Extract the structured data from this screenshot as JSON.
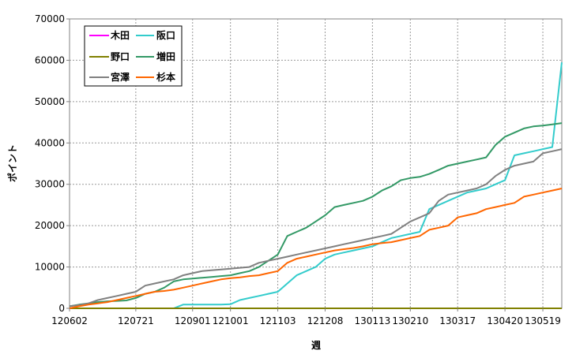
{
  "chart_data": {
    "type": "line",
    "title": "",
    "xlabel": "週",
    "ylabel": "ポイント",
    "ylim": [
      0,
      70000
    ],
    "yticks": [
      0,
      10000,
      20000,
      30000,
      40000,
      50000,
      60000,
      70000
    ],
    "xlim": [
      0,
      52
    ],
    "xticks": [
      {
        "x": 0,
        "label": "120602"
      },
      {
        "x": 7,
        "label": "120721"
      },
      {
        "x": 13,
        "label": "120901"
      },
      {
        "x": 17,
        "label": "121001"
      },
      {
        "x": 22,
        "label": "121103"
      },
      {
        "x": 27,
        "label": "121208"
      },
      {
        "x": 32,
        "label": "130113"
      },
      {
        "x": 36,
        "label": "130210"
      },
      {
        "x": 41,
        "label": "130317"
      },
      {
        "x": 46,
        "label": "130420"
      },
      {
        "x": 50,
        "label": "130519"
      }
    ],
    "grid": true,
    "legend_position": "top-left",
    "series": [
      {
        "name": "木田",
        "color": "#ff00ff",
        "values": [
          0,
          0,
          0,
          0,
          0,
          0,
          0,
          0,
          0,
          0,
          0,
          0,
          0,
          0,
          0,
          0,
          0,
          0,
          0,
          0,
          0,
          0,
          0,
          0,
          0,
          0,
          0,
          0,
          0,
          0,
          0,
          0,
          0,
          0,
          0,
          0,
          0,
          0,
          0,
          0,
          0,
          0,
          0,
          0,
          0,
          0,
          0,
          0,
          0,
          0,
          0,
          0,
          0
        ]
      },
      {
        "name": "阪口",
        "color": "#33cccc",
        "values": [
          0,
          0,
          0,
          0,
          0,
          0,
          0,
          0,
          0,
          0,
          0,
          0,
          900,
          900,
          900,
          900,
          900,
          1000,
          2000,
          2500,
          3000,
          3500,
          4000,
          6000,
          8000,
          9000,
          10000,
          12000,
          13000,
          13500,
          14000,
          14500,
          15000,
          16000,
          17000,
          17500,
          18000,
          18500,
          24000,
          25000,
          26000,
          27000,
          28000,
          28500,
          29000,
          30000,
          31000,
          37000,
          37500,
          38000,
          38500,
          39000,
          59500
        ]
      },
      {
        "name": "野口",
        "color": "#808000",
        "values": [
          0,
          0,
          0,
          0,
          0,
          0,
          0,
          0,
          0,
          0,
          0,
          0,
          0,
          0,
          0,
          0,
          0,
          0,
          0,
          0,
          0,
          0,
          0,
          0,
          0,
          0,
          0,
          0,
          0,
          0,
          0,
          0,
          0,
          0,
          0,
          0,
          0,
          0,
          0,
          0,
          0,
          0,
          0,
          0,
          0,
          0,
          0,
          0,
          0,
          0,
          0,
          0,
          0
        ]
      },
      {
        "name": "増田",
        "color": "#339966",
        "values": [
          500,
          900,
          1200,
          1500,
          1700,
          1800,
          1900,
          2500,
          3500,
          4000,
          5000,
          6500,
          7000,
          7200,
          7400,
          7600,
          7800,
          8000,
          8500,
          9000,
          10000,
          11500,
          13000,
          17500,
          18500,
          19500,
          21000,
          22500,
          24500,
          25000,
          25500,
          26000,
          27000,
          28500,
          29500,
          31000,
          31500,
          31800,
          32500,
          33500,
          34500,
          35000,
          35500,
          36000,
          36500,
          39500,
          41500,
          42500,
          43500,
          44000,
          44200,
          44500,
          44800
        ]
      },
      {
        "name": "宮澤",
        "color": "#808080",
        "values": [
          500,
          800,
          1200,
          2000,
          2500,
          3000,
          3500,
          4000,
          5500,
          6000,
          6500,
          7000,
          8000,
          8500,
          9000,
          9200,
          9400,
          9600,
          9800,
          10000,
          11000,
          11500,
          12000,
          12500,
          13000,
          13500,
          14000,
          14500,
          15000,
          15500,
          16000,
          16500,
          17000,
          17500,
          18000,
          19500,
          21000,
          22000,
          23000,
          26000,
          27500,
          28000,
          28500,
          29000,
          30000,
          32000,
          33500,
          34500,
          35000,
          35500,
          37500,
          38000,
          38500
        ]
      },
      {
        "name": "杉本",
        "color": "#ff6600",
        "values": [
          0,
          500,
          900,
          1200,
          1500,
          2000,
          2500,
          3000,
          3500,
          4000,
          4200,
          4500,
          5000,
          5500,
          6000,
          6500,
          7000,
          7300,
          7500,
          7800,
          8000,
          8500,
          9000,
          11000,
          12000,
          12500,
          13000,
          13500,
          14000,
          14300,
          14600,
          15000,
          15500,
          15800,
          16000,
          16500,
          17000,
          17500,
          19000,
          19500,
          20000,
          22000,
          22500,
          23000,
          24000,
          24500,
          25000,
          25500,
          27000,
          27500,
          28000,
          28500,
          29000
        ]
      }
    ]
  }
}
